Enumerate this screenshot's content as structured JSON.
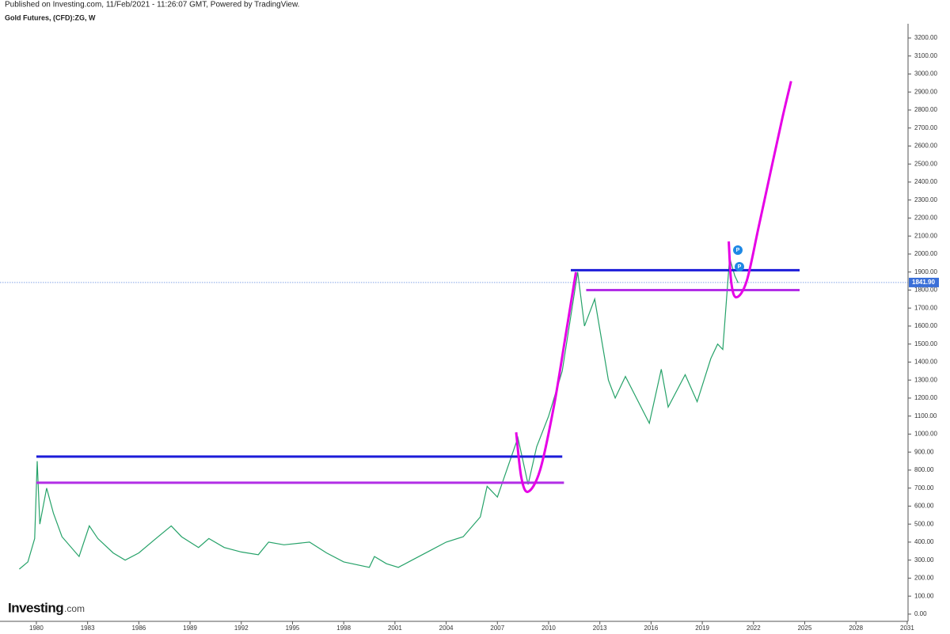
{
  "chart_data": {
    "type": "line",
    "published": "Published on Investing.com, 11/Feb/2021 - 11:26:07 GMT, Powered by TradingView.",
    "title": "Gold Futures, (CFD):ZG, W",
    "logo": {
      "brand": "Investing",
      "suffix": ".com"
    },
    "x": [
      1979.0,
      1979.5,
      1979.9,
      1980.05,
      1980.2,
      1980.6,
      1981.0,
      1981.5,
      1982.5,
      1983.1,
      1983.6,
      1984.5,
      1985.2,
      1986.0,
      1987.0,
      1987.9,
      1988.5,
      1989.5,
      1990.1,
      1991.0,
      1992.0,
      1993.0,
      1993.6,
      1994.5,
      1996.0,
      1997.0,
      1998.0,
      1999.5,
      1999.8,
      2000.5,
      2001.2,
      2002.0,
      2003.0,
      2004.0,
      2005.0,
      2006.0,
      2006.4,
      2007.0,
      2008.2,
      2008.8,
      2009.3,
      2010.0,
      2010.8,
      2011.7,
      2012.1,
      2012.7,
      2013.5,
      2013.9,
      2014.5,
      2015.9,
      2016.6,
      2017.0,
      2018.0,
      2018.7,
      2019.5,
      2019.9,
      2020.2,
      2020.6,
      2020.9,
      2021.1
    ],
    "values": [
      250,
      290,
      420,
      850,
      500,
      700,
      560,
      430,
      320,
      490,
      420,
      340,
      300,
      340,
      420,
      490,
      430,
      370,
      420,
      370,
      345,
      330,
      400,
      385,
      400,
      340,
      290,
      260,
      320,
      280,
      260,
      300,
      350,
      400,
      430,
      540,
      710,
      650,
      980,
      720,
      930,
      1100,
      1350,
      1900,
      1600,
      1750,
      1300,
      1200,
      1320,
      1060,
      1360,
      1150,
      1330,
      1180,
      1420,
      1500,
      1470,
      1980,
      1880,
      1840
    ],
    "color": "#26a269",
    "last_price": {
      "value": 1841.9,
      "label": "1841.90",
      "color": "#3a6fd8"
    },
    "levels": [
      {
        "value": 875,
        "x": [
          1980,
          2010.8
        ],
        "color": "#1c1cd9"
      },
      {
        "value": 730,
        "x": [
          1980,
          2010.9
        ],
        "color": "#b22ee6"
      },
      {
        "value": 1910,
        "x": [
          2011.3,
          2024.7
        ],
        "color": "#1c1cd9"
      },
      {
        "value": 1800,
        "x": [
          2012.2,
          2024.7
        ],
        "color": "#b22ee6"
      }
    ],
    "curves": [
      {
        "color": "#e600e6",
        "x": [
          2008.1,
          2008.4,
          2008.8,
          2009.5,
          2010.3,
          2011.0,
          2011.6
        ],
        "values": [
          1010,
          760,
          680,
          800,
          1150,
          1550,
          1900
        ]
      },
      {
        "color": "#e600e6",
        "x": [
          2020.55,
          2020.7,
          2021.0,
          2021.6,
          2022.3,
          2023.1,
          2023.7,
          2024.2
        ],
        "values": [
          2070,
          1840,
          1760,
          1850,
          2150,
          2500,
          2760,
          2960
        ]
      }
    ],
    "flags": [
      "P",
      "P"
    ],
    "xlim": [
      1977.87,
      2031.05
    ],
    "ylim": [
      -40,
      3411
    ],
    "xticks": [
      1980,
      1983,
      1986,
      1989,
      1992,
      1995,
      1998,
      2001,
      2004,
      2007,
      2010,
      2013,
      2016,
      2019,
      2022,
      2025,
      2028,
      2031
    ],
    "yticks": [
      {
        "value": 0,
        "label": "0.00"
      },
      {
        "value": 100,
        "label": "100.00"
      },
      {
        "value": 200,
        "label": "200.00"
      },
      {
        "value": 300,
        "label": "300.00"
      },
      {
        "value": 400,
        "label": "400.00"
      },
      {
        "value": 500,
        "label": "500.00"
      },
      {
        "value": 600,
        "label": "600.00"
      },
      {
        "value": 700,
        "label": "700.00"
      },
      {
        "value": 800,
        "label": "800.00"
      },
      {
        "value": 900,
        "label": "900.00"
      },
      {
        "value": 1000,
        "label": "1000.00"
      },
      {
        "value": 1100,
        "label": "1100.00"
      },
      {
        "value": 1200,
        "label": "1200.00"
      },
      {
        "value": 1300,
        "label": "1300.00"
      },
      {
        "value": 1400,
        "label": "1400.00"
      },
      {
        "value": 1500,
        "label": "1500.00"
      },
      {
        "value": 1600,
        "label": "1600.00"
      },
      {
        "value": 1700,
        "label": "1700.00"
      },
      {
        "value": 1800,
        "label": "1800.00"
      },
      {
        "value": 1900,
        "label": "1900.00"
      },
      {
        "value": 2000,
        "label": "2000.00"
      },
      {
        "value": 2100,
        "label": "2100.00"
      },
      {
        "value": 2200,
        "label": "2200.00"
      },
      {
        "value": 2300,
        "label": "2300.00"
      },
      {
        "value": 2400,
        "label": "2400.00"
      },
      {
        "value": 2500,
        "label": "2500.00"
      },
      {
        "value": 2600,
        "label": "2600.00"
      },
      {
        "value": 2700,
        "label": "2700.00"
      },
      {
        "value": 2800,
        "label": "2800.00"
      },
      {
        "value": 2900,
        "label": "2900.00"
      },
      {
        "value": 3000,
        "label": "3000.00"
      },
      {
        "value": 3100,
        "label": "3100.00"
      },
      {
        "value": 3200,
        "label": "3200.00"
      }
    ]
  }
}
